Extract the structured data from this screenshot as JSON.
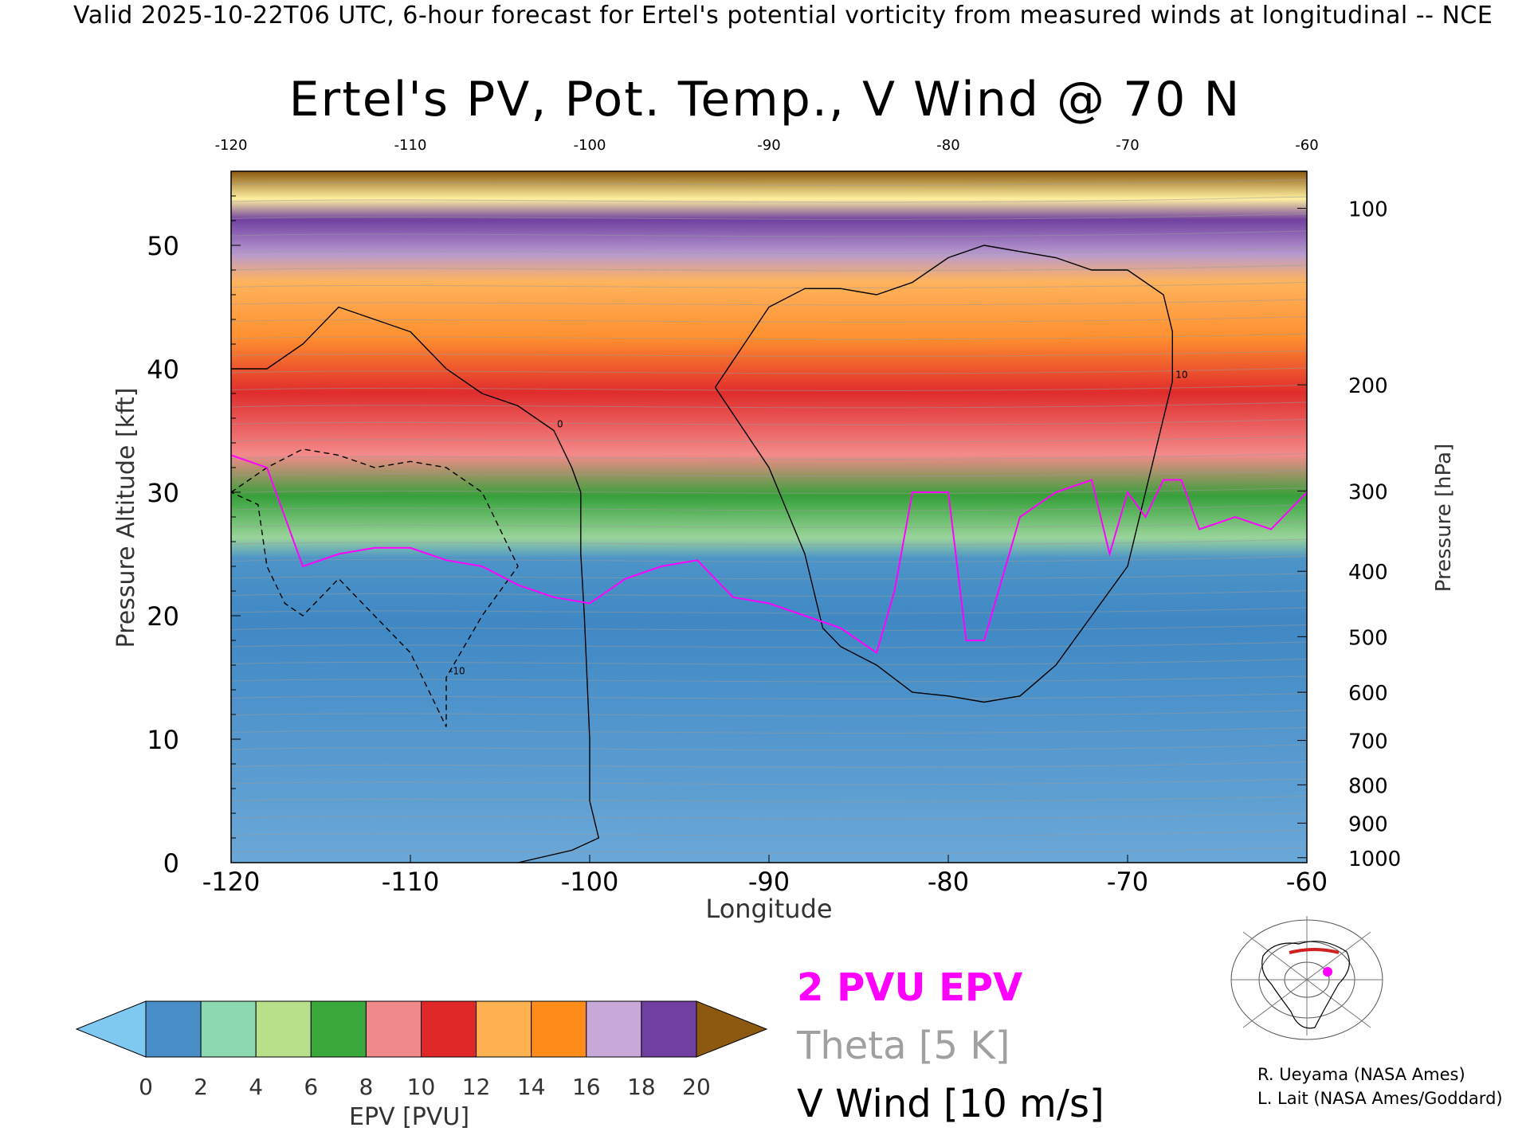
{
  "header": {
    "valid_line": "Valid 2025-10-22T06 UTC, 6-hour forecast for Ertel's potential vorticity from measured winds at longitudinal -- NCE"
  },
  "chart_data": {
    "type": "heatmap",
    "title": "Ertel's PV, Pot. Temp., V Wind @ 70 N",
    "xlabel": "Longitude",
    "ylabel_left": "Pressure Altitude [kft]",
    "ylabel_right": "Pressure [hPa]",
    "xlim": [
      -120,
      -60
    ],
    "ylim": [
      0,
      56
    ],
    "x_ticks": [
      "-120",
      "-110",
      "-100",
      "-90",
      "-80",
      "-70",
      "-60"
    ],
    "top_x_ticks": [
      "-120",
      "-110",
      "-100",
      "-90",
      "-80",
      "-70",
      "-60"
    ],
    "y_ticks_left": [
      "0",
      "10",
      "20",
      "30",
      "40",
      "50"
    ],
    "pressure_ticks": [
      {
        "label": "100",
        "alt": 53.0
      },
      {
        "label": "200",
        "alt": 38.7
      },
      {
        "label": "300",
        "alt": 30.1
      },
      {
        "label": "400",
        "alt": 23.6
      },
      {
        "label": "500",
        "alt": 18.3
      },
      {
        "label": "600",
        "alt": 13.8
      },
      {
        "label": "700",
        "alt": 9.9
      },
      {
        "label": "800",
        "alt": 6.3
      },
      {
        "label": "900",
        "alt": 3.2
      },
      {
        "label": "1000",
        "alt": 0.4
      }
    ],
    "two_pvu_line": {
      "lon": [
        -120,
        -118,
        -116,
        -114,
        -112,
        -110,
        -108,
        -106,
        -104,
        -102,
        -100,
        -98,
        -96,
        -94,
        -92,
        -90,
        -88,
        -86,
        -84,
        -83,
        -82,
        -80,
        -79,
        -78,
        -76,
        -74,
        -72,
        -71,
        -70,
        -69,
        -68,
        -67,
        -66,
        -65,
        -64,
        -62,
        -60
      ],
      "alt": [
        33,
        32,
        24,
        25,
        25.5,
        25.5,
        24.5,
        24,
        22.5,
        21.5,
        21,
        23,
        24,
        24.5,
        21.5,
        21,
        20,
        19,
        17,
        22,
        30,
        30,
        18,
        18,
        28,
        30,
        31,
        25,
        30,
        28,
        31,
        31,
        27,
        27.5,
        28,
        27,
        30
      ]
    },
    "vwind_contours": [
      {
        "label": "0",
        "lon": [
          -120,
          -118,
          -116,
          -114,
          -112,
          -110,
          -108,
          -106,
          -104,
          -102,
          -101,
          -100.5,
          -100.5,
          -100.3,
          -100,
          -100,
          -99.5,
          -101,
          -104
        ],
        "alt": [
          40,
          40,
          42,
          45,
          44,
          43,
          40,
          38,
          37,
          35,
          32,
          30,
          25,
          20,
          10,
          5,
          2,
          1,
          0
        ]
      },
      {
        "label": "10",
        "lon": [
          -93,
          -90,
          -88,
          -86,
          -84,
          -82,
          -80,
          -78,
          -76,
          -74,
          -72,
          -70,
          -68,
          -67.5,
          -67.5,
          -70,
          -72,
          -74,
          -76,
          -78,
          -80,
          -82,
          -84,
          -86,
          -87,
          -88,
          -90,
          -93
        ],
        "alt": [
          38.5,
          45,
          46.5,
          46.5,
          46,
          47,
          49,
          50,
          49.5,
          49,
          48,
          48,
          46,
          43,
          39,
          24,
          20,
          16,
          13.5,
          13,
          13.5,
          13.8,
          16,
          17.5,
          19,
          25,
          32,
          38.5
        ]
      },
      {
        "label": "-10",
        "lon": [
          -120,
          -118,
          -116,
          -114,
          -112,
          -110,
          -108,
          -106,
          -104,
          -106,
          -108,
          -108,
          -110,
          -112,
          -114,
          -116,
          -117,
          -118,
          -118.5,
          -120
        ],
        "alt": [
          30,
          32,
          33.5,
          33,
          32,
          32.5,
          32,
          30,
          24,
          20,
          15,
          11,
          17,
          20,
          23,
          20,
          21,
          24,
          29,
          30
        ]
      }
    ],
    "colorbar": {
      "label": "EPV [PVU]",
      "ticks": [
        "0",
        "2",
        "4",
        "6",
        "8",
        "10",
        "12",
        "14",
        "16",
        "18",
        "20"
      ],
      "colors": [
        "#7fc8f0",
        "#4a8ec8",
        "#8cd8b0",
        "#b8e08a",
        "#3aa83a",
        "#f08a8a",
        "#e02828",
        "#ffb050",
        "#ff8c1a",
        "#c8a8d8",
        "#7040a0",
        "#fff0a0",
        "#8b5a10"
      ]
    },
    "legend": {
      "epv_line": "2 PVU EPV",
      "theta": "Theta [5 K]",
      "vwind": "V Wind [10 m/s]"
    }
  },
  "credits": {
    "line1": "R. Ueyama (NASA Ames)",
    "line2": "L. Lait (NASA Ames/Goddard)"
  },
  "colors": {
    "two_pvu_line": "#ff00ff",
    "theta": "#a0a0a0"
  }
}
